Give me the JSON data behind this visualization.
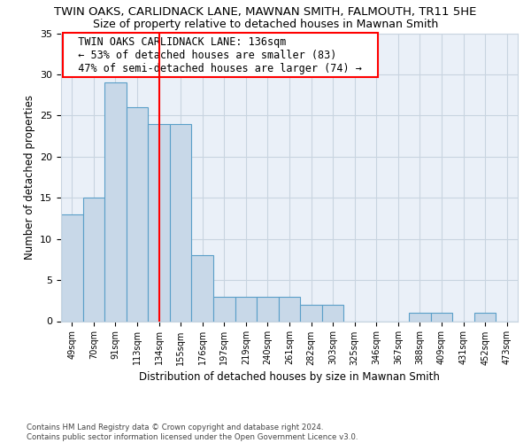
{
  "title": "TWIN OAKS, CARLIDNACK LANE, MAWNAN SMITH, FALMOUTH, TR11 5HE",
  "subtitle": "Size of property relative to detached houses in Mawnan Smith",
  "xlabel": "Distribution of detached houses by size in Mawnan Smith",
  "ylabel": "Number of detached properties",
  "footer_line1": "Contains HM Land Registry data © Crown copyright and database right 2024.",
  "footer_line2": "Contains public sector information licensed under the Open Government Licence v3.0.",
  "bin_labels": [
    "49sqm",
    "70sqm",
    "91sqm",
    "113sqm",
    "134sqm",
    "155sqm",
    "176sqm",
    "197sqm",
    "219sqm",
    "240sqm",
    "261sqm",
    "282sqm",
    "303sqm",
    "325sqm",
    "346sqm",
    "367sqm",
    "388sqm",
    "409sqm",
    "431sqm",
    "452sqm",
    "473sqm"
  ],
  "values": [
    13,
    15,
    29,
    26,
    24,
    24,
    8,
    3,
    3,
    3,
    3,
    2,
    2,
    0,
    0,
    0,
    1,
    1,
    0,
    1,
    0
  ],
  "bar_color": "#c8d8e8",
  "bar_edge_color": "#5a9fc8",
  "red_line_x": 4,
  "annotation_line1": "  TWIN OAKS CARLIDNACK LANE: 136sqm  ",
  "annotation_line2": "  ← 53% of detached houses are smaller (83)  ",
  "annotation_line3": "  47% of semi-detached houses are larger (74) →  ",
  "ylim": [
    0,
    35
  ],
  "yticks": [
    0,
    5,
    10,
    15,
    20,
    25,
    30,
    35
  ],
  "bg_color": "#ffffff",
  "plot_bg_color": "#eaf0f8",
  "grid_color": "#c8d4e0",
  "title_fontsize": 9.5,
  "subtitle_fontsize": 9
}
